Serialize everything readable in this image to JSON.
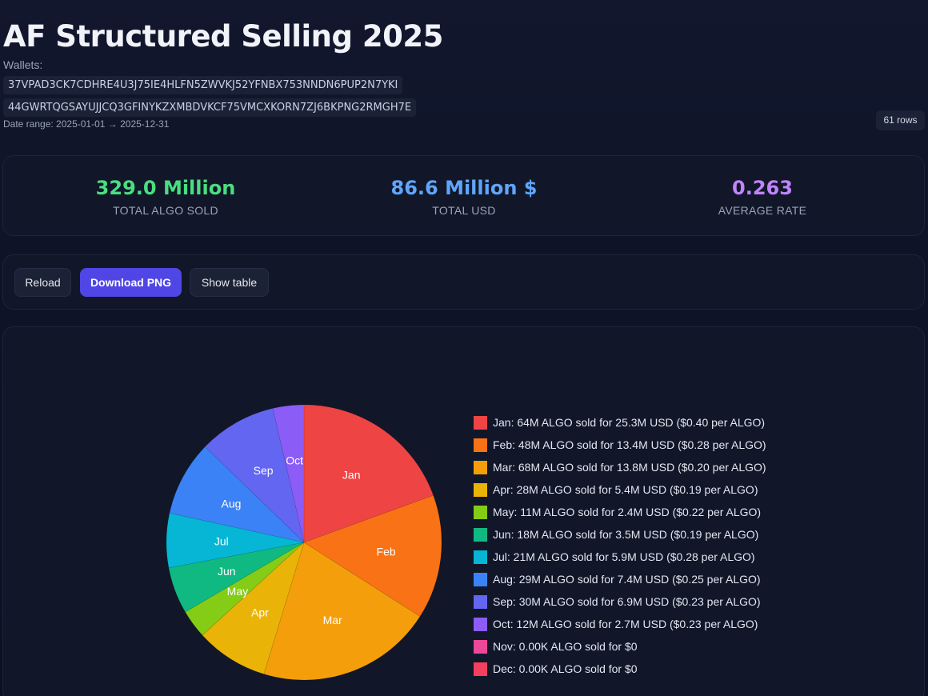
{
  "header": {
    "title": "AF Structured Selling 2025",
    "wallets_label": "Wallets:",
    "wallets": [
      "37VPAD3CK7CDHRE4U3J75IE4HLFN5ZWVKJ52YFNBX753NNDN6PUP2N7YKI",
      "44GWRTQGSAYUJJCQ3GFINYKZXMBDVKCF75VMCXKORN7ZJ6BKPNG2RMGH7E"
    ],
    "date_range": "Date range: 2025-01-01 → 2025-12-31",
    "rows_badge": "61 rows"
  },
  "stats": {
    "algo": {
      "value": "329.0 Million",
      "label": "TOTAL ALGO SOLD"
    },
    "usd": {
      "value": "86.6 Million $",
      "label": "TOTAL USD"
    },
    "rate": {
      "value": "0.263",
      "label": "AVERAGE RATE"
    }
  },
  "controls": {
    "reload": "Reload",
    "download": "Download PNG",
    "show_table": "Show table"
  },
  "chart_data": {
    "type": "pie",
    "title": "",
    "categories": [
      "Jan",
      "Feb",
      "Mar",
      "Apr",
      "May",
      "Jun",
      "Jul",
      "Aug",
      "Sep",
      "Oct",
      "Nov",
      "Dec"
    ],
    "values": [
      64,
      48,
      68,
      28,
      11,
      18,
      21,
      29,
      30,
      12,
      0,
      0
    ],
    "unit": "Million ALGO",
    "colors": [
      "#ef4444",
      "#f97316",
      "#f59e0b",
      "#eab308",
      "#84cc16",
      "#10b981",
      "#06b6d4",
      "#3b82f6",
      "#6366f1",
      "#8b5cf6",
      "#ec4899",
      "#f43f5e"
    ],
    "legend": [
      "Jan: 64M ALGO sold for 25.3M USD ($0.40 per ALGO)",
      "Feb: 48M ALGO sold for 13.4M USD ($0.28 per ALGO)",
      "Mar: 68M ALGO sold for 13.8M USD ($0.20 per ALGO)",
      "Apr: 28M ALGO sold for 5.4M USD ($0.19 per ALGO)",
      "May: 11M ALGO sold for 2.4M USD ($0.22 per ALGO)",
      "Jun: 18M ALGO sold for 3.5M USD ($0.19 per ALGO)",
      "Jul: 21M ALGO sold for 5.9M USD ($0.28 per ALGO)",
      "Aug: 29M ALGO sold for 7.4M USD ($0.25 per ALGO)",
      "Sep: 30M ALGO sold for 6.9M USD ($0.23 per ALGO)",
      "Oct: 12M ALGO sold for 2.7M USD ($0.23 per ALGO)",
      "Nov: 0.00K ALGO sold for $0",
      "Dec: 0.00K ALGO sold for $0"
    ],
    "legend_position": "right"
  }
}
